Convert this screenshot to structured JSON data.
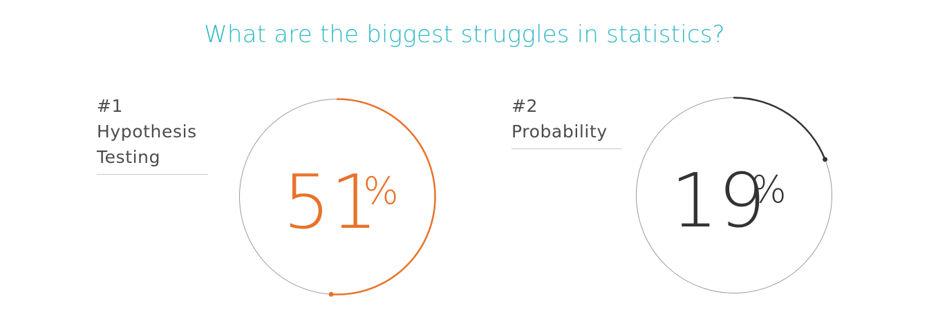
{
  "title": "What are the biggest struggles in statistics?",
  "colors": {
    "title": "#2db8c5",
    "orange": "#e8722a",
    "dark": "#333333",
    "track": "#9a9a9a"
  },
  "chart_data": {
    "type": "gauge",
    "title": "What are the biggest struggles in statistics?",
    "items": [
      {
        "rank": "#1",
        "name": "Hypothesis Testing",
        "value": 51,
        "display": "51",
        "unit": "%",
        "color": "#e8722a"
      },
      {
        "rank": "#2",
        "name": "Probability",
        "value": 19,
        "display": "19",
        "unit": "%",
        "color": "#333333"
      }
    ]
  }
}
